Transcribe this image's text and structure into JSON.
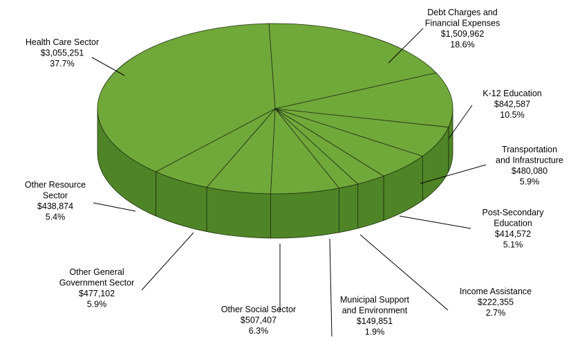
{
  "chart_data": {
    "type": "pie",
    "title": "",
    "colors": {
      "top": "#71a83a",
      "side": "#4f8526",
      "edge": "#1e2e12"
    },
    "slices": [
      {
        "label_lines": [
          "Debt Charges and",
          "Financial Expenses"
        ],
        "value": "$1,509,962",
        "percent": "18.6%",
        "amount": 1509962
      },
      {
        "label_lines": [
          "K-12 Education"
        ],
        "value": "$842,587",
        "percent": "10.5%",
        "amount": 842587
      },
      {
        "label_lines": [
          "Transportation",
          "and Infrastructure"
        ],
        "value": "$480,080",
        "percent": "5.9%",
        "amount": 480080
      },
      {
        "label_lines": [
          "Post-Secondary",
          "Education"
        ],
        "value": "$414,572",
        "percent": "5.1%",
        "amount": 414572
      },
      {
        "label_lines": [
          "Income Assistance"
        ],
        "value": "$222,355",
        "percent": "2.7%",
        "amount": 222355
      },
      {
        "label_lines": [
          "Municipal Support",
          "and Environment"
        ],
        "value": "$149,851",
        "percent": "1.9%",
        "amount": 149851
      },
      {
        "label_lines": [
          "Other Social Sector"
        ],
        "value": "$507,407",
        "percent": "6.3%",
        "amount": 507407
      },
      {
        "label_lines": [
          "Other General",
          "Government Sector"
        ],
        "value": "$477,102",
        "percent": "5.9%",
        "amount": 477102
      },
      {
        "label_lines": [
          "Other Resource",
          "Sector"
        ],
        "value": "$438,874",
        "percent": "5.4%",
        "amount": 438874
      },
      {
        "label_lines": [
          "Health Care Sector"
        ],
        "value": "$3,055,251",
        "percent": "37.7%",
        "amount": 3055251
      }
    ]
  }
}
